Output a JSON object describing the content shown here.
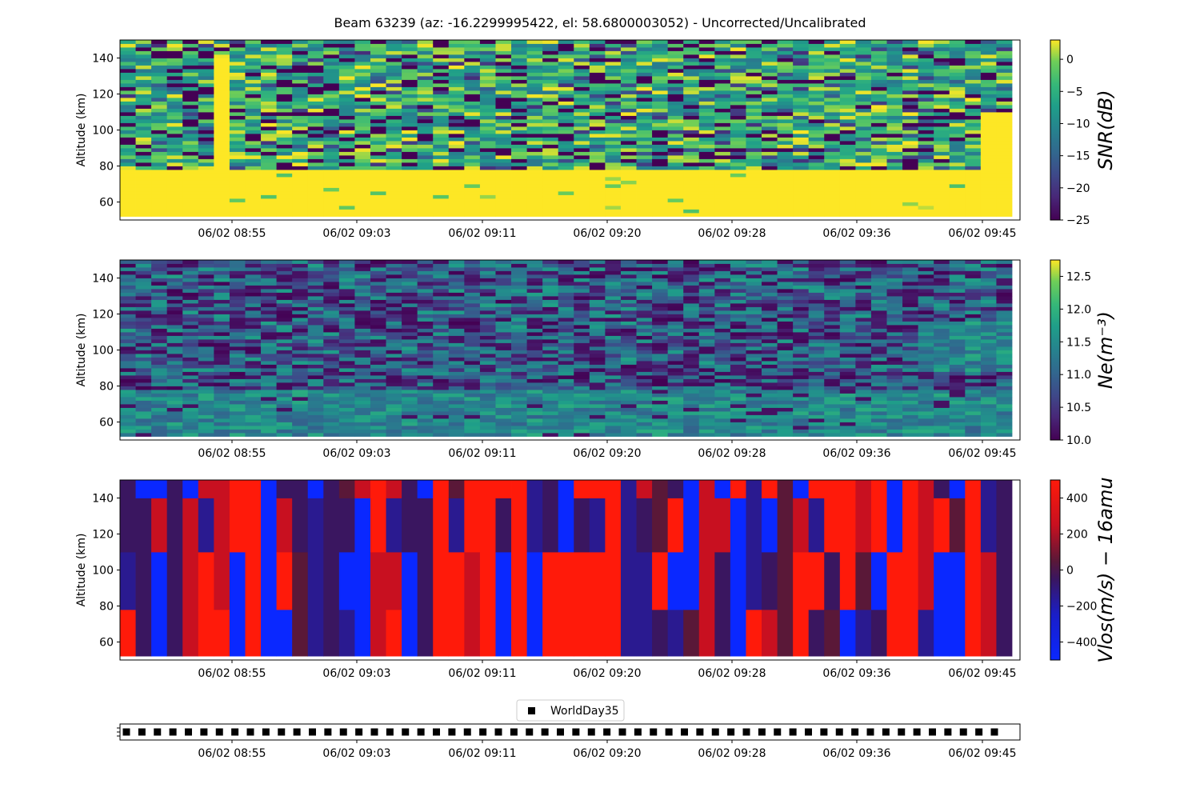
{
  "title": "Beam 63239 (az: -16.2299995422, el: 58.6800003052) - Uncorrected/Uncalibrated",
  "x_tick_labels": [
    "06/02 08:55",
    "06/02 09:03",
    "06/02 09:11",
    "06/02 09:20",
    "06/02 09:28",
    "06/02 09:36",
    "06/02 09:45"
  ],
  "y_tick_labels": [
    "60",
    "80",
    "100",
    "120",
    "140"
  ],
  "ylabel": "Altitude (km)",
  "legend": {
    "label": "WorldDay35",
    "marker": "square",
    "color": "#000000"
  },
  "chart_data": [
    {
      "type": "heatmap",
      "panel": "snr",
      "colormap": "viridis",
      "colorbar_label": "SNR(dB)",
      "colorbar_ticks": [
        "0",
        "−5",
        "−10",
        "−15",
        "−20",
        "−25"
      ],
      "colorbar_range": [
        -25,
        3
      ],
      "ylabel": "Altitude (km)",
      "ylim": [
        50,
        150
      ],
      "x_ticks": [
        "06/02 08:55",
        "06/02 09:03",
        "06/02 09:11",
        "06/02 09:20",
        "06/02 09:28",
        "06/02 09:36",
        "06/02 09:45"
      ],
      "y_ticks": [
        60,
        80,
        100,
        120,
        140
      ],
      "description_values": {
        "below_78km": 3,
        "78_to_150km_range": [
          -25,
          3
        ]
      }
    },
    {
      "type": "heatmap",
      "panel": "ne",
      "colormap": "viridis",
      "colorbar_label": "Ne(m⁻³)",
      "colorbar_ticks": [
        "12.5",
        "12.0",
        "11.5",
        "11.0",
        "10.5",
        "10.0"
      ],
      "colorbar_range": [
        10.0,
        12.75
      ],
      "ylabel": "Altitude (km)",
      "ylim": [
        50,
        150
      ],
      "x_ticks": [
        "06/02 08:55",
        "06/02 09:03",
        "06/02 09:11",
        "06/02 09:20",
        "06/02 09:28",
        "06/02 09:36",
        "06/02 09:45"
      ],
      "y_ticks": [
        60,
        80,
        100,
        120,
        140
      ]
    },
    {
      "type": "heatmap",
      "panel": "vlos",
      "colormap": "blue-black-red",
      "colorbar_label": "Vlos(m/s) − 16amu",
      "colorbar_ticks": [
        "400",
        "200",
        "0",
        "−200",
        "−400"
      ],
      "colorbar_range": [
        -500,
        500
      ],
      "ylabel": "Altitude (km)",
      "ylim": [
        50,
        150
      ],
      "x_ticks": [
        "06/02 08:55",
        "06/02 09:03",
        "06/02 09:11",
        "06/02 09:20",
        "06/02 09:28",
        "06/02 09:36",
        "06/02 09:45"
      ],
      "y_ticks": [
        60,
        80,
        100,
        120,
        140
      ],
      "altitude_bands_km": [
        [
          52,
          78
        ],
        [
          78,
          110
        ],
        [
          110,
          140
        ],
        [
          140,
          150
        ]
      ]
    },
    {
      "type": "scatter",
      "panel": "mode",
      "series": [
        {
          "name": "WorldDay35",
          "marker": "square"
        }
      ],
      "x_ticks": [
        "06/02 08:55",
        "06/02 09:03",
        "06/02 09:11",
        "06/02 09:20",
        "06/02 09:28",
        "06/02 09:36",
        "06/02 09:45"
      ],
      "point_count": 57
    }
  ]
}
